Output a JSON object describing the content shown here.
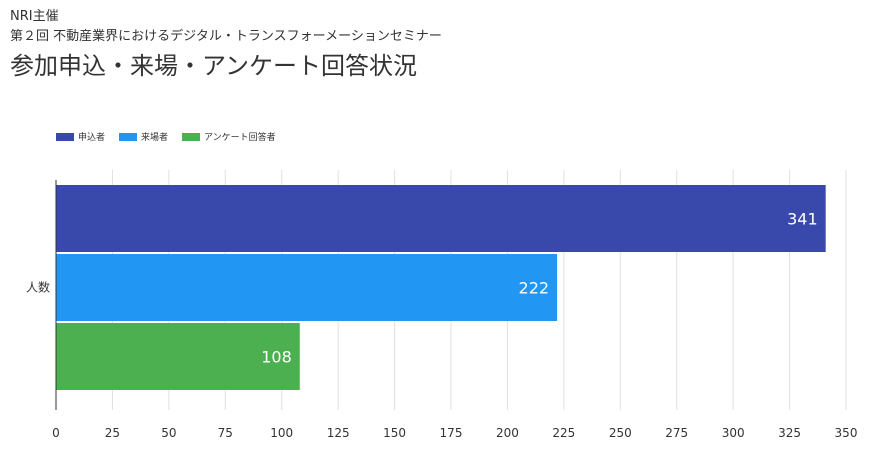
{
  "header": {
    "organizer": "NRI主催",
    "subtitle": "第２回 不動産業界におけるデジタル・トランスフォーメーションセミナー",
    "title": "参加申込・来場・アンケート回答状況"
  },
  "chart_data": {
    "type": "bar",
    "orientation": "horizontal",
    "title": "参加申込・来場・アンケート回答状況",
    "categories": [
      "人数"
    ],
    "series": [
      {
        "name": "申込者",
        "values": [
          341
        ],
        "color": "#3949ab"
      },
      {
        "name": "来場者",
        "values": [
          222
        ],
        "color": "#2196f3"
      },
      {
        "name": "アンケート回答者",
        "values": [
          108
        ],
        "color": "#4caf50"
      }
    ],
    "xlim": [
      0,
      350
    ],
    "xticks": [
      0,
      25,
      50,
      75,
      100,
      125,
      150,
      175,
      200,
      225,
      250,
      275,
      300,
      325,
      350
    ],
    "grid": true,
    "legend": "top-left"
  }
}
